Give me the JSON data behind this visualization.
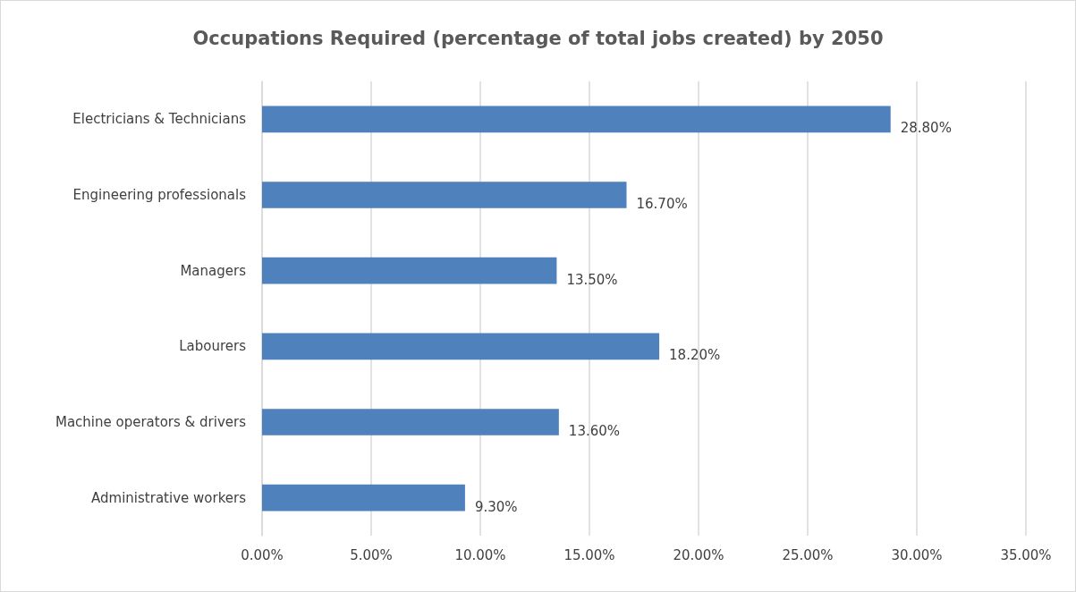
{
  "chart_data": {
    "type": "bar",
    "orientation": "horizontal",
    "title": "Occupations Required (percentage of total jobs created) by 2050",
    "categories": [
      "Electricians & Technicians",
      "Engineering professionals",
      "Managers",
      "Labourers",
      "Machine operators & drivers",
      "Administrative workers"
    ],
    "values": [
      28.8,
      16.7,
      13.5,
      18.2,
      13.6,
      9.3
    ],
    "value_labels": [
      "28.80%",
      "16.70%",
      "13.50%",
      "18.20%",
      "13.60%",
      "9.30%"
    ],
    "color": "#4f81bd",
    "xlim": [
      0,
      35
    ],
    "xticks": [
      {
        "value": 0,
        "label": "0.00%"
      },
      {
        "value": 5,
        "label": "5.00%"
      },
      {
        "value": 10,
        "label": "10.00%"
      },
      {
        "value": 15,
        "label": "15.00%"
      },
      {
        "value": 20,
        "label": "20.00%"
      },
      {
        "value": 25,
        "label": "25.00%"
      },
      {
        "value": 30,
        "label": "30.00%"
      },
      {
        "value": 35,
        "label": "35.00%"
      }
    ],
    "grid": "x"
  }
}
